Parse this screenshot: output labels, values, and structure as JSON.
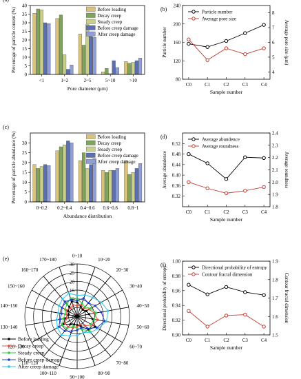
{
  "chart_data": [
    {
      "panel": "(a)",
      "type": "bar",
      "xlabel": "Pore diameter (μm)",
      "ylabel": "Percentage of particle content (%)",
      "ylim": [
        0,
        40
      ],
      "yticks": [
        0,
        5,
        10,
        15,
        20,
        25,
        30,
        35,
        40
      ],
      "categories": [
        "<1",
        "1~2",
        "2~5",
        "5~10",
        ">10"
      ],
      "legend_position": "top-right",
      "series": [
        {
          "name": "Before loading",
          "color": "#d9c27a",
          "values": [
            35.5,
            32.5,
            23.5,
            1.5,
            7.5
          ]
        },
        {
          "name": "Decay creep",
          "color": "#7fa35a",
          "values": [
            38.0,
            34.5,
            17.0,
            3.5,
            6.5
          ]
        },
        {
          "name": "Steady creep",
          "color": "#c8d08a",
          "values": [
            37.5,
            11.5,
            29.0,
            0.5,
            7.0
          ]
        },
        {
          "name": "Before creep damage",
          "color": "#5c6fb0",
          "values": [
            30.0,
            3.0,
            22.0,
            8.0,
            8.0
          ]
        },
        {
          "name": "After creep damage",
          "color": "#8f9fd6",
          "values": [
            29.5,
            5.5,
            21.5,
            4.0,
            9.5
          ]
        }
      ]
    },
    {
      "panel": "(b)",
      "type": "line",
      "xlabel": "Sample number",
      "ylabel": "Particle number",
      "y2label": "Average pore size (μm)",
      "categories": [
        "C0",
        "C1",
        "C2",
        "C3",
        "C4"
      ],
      "ylim": [
        80,
        240
      ],
      "yticks": [
        80,
        120,
        160,
        200,
        240
      ],
      "y2lim": [
        3.5,
        8.5
      ],
      "y2ticks": [
        4,
        5,
        6,
        7,
        8
      ],
      "legend_position": "top-left",
      "series": [
        {
          "name": "Particle number",
          "axis": "left",
          "color": "#000000",
          "values": [
            157,
            150,
            163,
            180,
            198
          ]
        },
        {
          "name": "Average pore size",
          "axis": "right",
          "color": "#c0392b",
          "values": [
            6.2,
            4.8,
            5.6,
            5.2,
            5.6
          ]
        }
      ]
    },
    {
      "panel": "(c)",
      "type": "bar",
      "xlabel": "Abundance distribution",
      "ylabel": "Percentage of particle abundance (%)",
      "ylim": [
        0,
        35
      ],
      "yticks": [
        0,
        5,
        10,
        15,
        20,
        25,
        30
      ],
      "categories": [
        "0~0.2",
        "0.2~0.4",
        "0.4~0.6",
        "0.6~0.8",
        "0.8~1"
      ],
      "legend_position": "top-right",
      "series": [
        {
          "name": "Before loading",
          "color": "#d9c27a",
          "values": [
            19,
            26,
            21,
            16,
            21
          ]
        },
        {
          "name": "Decay creep",
          "color": "#7fa35a",
          "values": [
            17,
            28,
            25,
            15,
            14
          ]
        },
        {
          "name": "Steady creep",
          "color": "#c8d08a",
          "values": [
            18,
            29,
            17,
            16,
            15
          ]
        },
        {
          "name": "Before creep damage",
          "color": "#5c6fb0",
          "values": [
            19,
            31,
            19,
            16,
            17
          ]
        },
        {
          "name": "After creep damage",
          "color": "#8f9fd6",
          "values": [
            18.5,
            30,
            22,
            17,
            19.5
          ]
        }
      ]
    },
    {
      "panel": "(d)",
      "type": "line",
      "xlabel": "Sample number",
      "ylabel": "Average abundence",
      "y2label": "Average roundness",
      "categories": [
        "C0",
        "C1",
        "C2",
        "C3",
        "C4"
      ],
      "ylim": [
        0.28,
        0.56
      ],
      "yticks": [
        0.32,
        0.36,
        0.4,
        0.44,
        0.48,
        0.52
      ],
      "y2lim": [
        1.8,
        2.4
      ],
      "y2ticks": [
        1.8,
        1.9,
        2.0,
        2.1,
        2.2,
        2.3,
        2.4
      ],
      "legend_position": "top-left",
      "series": [
        {
          "name": "Average abundence",
          "axis": "left",
          "color": "#000000",
          "values": [
            0.48,
            0.445,
            0.385,
            0.468,
            0.465
          ]
        },
        {
          "name": "Average roundness",
          "axis": "right",
          "color": "#c0392b",
          "values": [
            2.0,
            1.95,
            1.91,
            1.93,
            1.96
          ]
        }
      ]
    },
    {
      "panel": "(e)",
      "type": "polar",
      "rticks": [
        0,
        5,
        10,
        15,
        20,
        25,
        30
      ],
      "rmax": 30,
      "categories": [
        "0~10",
        "10~20",
        "20~30",
        "30~40",
        "40~50",
        "50~60",
        "60~70",
        "70~80",
        "80~90",
        "90~100",
        "100~110",
        "110~120",
        "120~130",
        "130~140",
        "140~150",
        "150~160",
        "160~170",
        "170~180"
      ],
      "legend_position": "bottom-left",
      "series": [
        {
          "name": "Before loading",
          "color": "#000000",
          "values": [
            8,
            6,
            5,
            6,
            7,
            9,
            12,
            10,
            6,
            5,
            5,
            6,
            9,
            7,
            5,
            6,
            7,
            9
          ]
        },
        {
          "name": "Decay creep",
          "color": "#e74c3c",
          "values": [
            6,
            7,
            6,
            8,
            10,
            12,
            10,
            7,
            5,
            6,
            7,
            8,
            8,
            6,
            6,
            7,
            6,
            7
          ]
        },
        {
          "name": "Steady creep",
          "color": "#2ecc40",
          "values": [
            10,
            8,
            7,
            9,
            11,
            10,
            9,
            11,
            8,
            7,
            6,
            9,
            10,
            8,
            7,
            8,
            9,
            11
          ]
        },
        {
          "name": "Before creep damage",
          "color": "#1f3fd0",
          "values": [
            9,
            11,
            10,
            12,
            14,
            16,
            13,
            9,
            7,
            8,
            9,
            11,
            12,
            10,
            9,
            10,
            11,
            10
          ]
        },
        {
          "name": "After creep damage",
          "color": "#2ec4e8",
          "values": [
            12,
            13,
            14,
            16,
            18,
            17,
            14,
            12,
            10,
            11,
            12,
            14,
            13,
            12,
            11,
            12,
            13,
            14
          ]
        }
      ]
    },
    {
      "panel": "(f)",
      "type": "line",
      "xlabel": "Sample number",
      "ylabel": "Directional probability of entropy",
      "y2label": "Contour fractal dimension",
      "categories": [
        "C0",
        "C1",
        "C2",
        "C3",
        "C4"
      ],
      "ylim": [
        0.9,
        1.0
      ],
      "yticks": [
        0.9,
        0.92,
        0.94,
        0.96,
        0.98,
        1.0
      ],
      "y2lim": [
        1.5,
        1.9
      ],
      "y2ticks": [
        1.5,
        1.6,
        1.7,
        1.8,
        1.9
      ],
      "legend_position": "top-left",
      "series": [
        {
          "name": "Directional probability of entropy",
          "axis": "left",
          "color": "#000000",
          "values": [
            0.968,
            0.955,
            0.965,
            0.958,
            0.954
          ]
        },
        {
          "name": "Contour fractal dimension",
          "axis": "right",
          "color": "#c0392b",
          "values": [
            1.63,
            1.545,
            1.605,
            1.61,
            1.545
          ]
        }
      ]
    }
  ]
}
